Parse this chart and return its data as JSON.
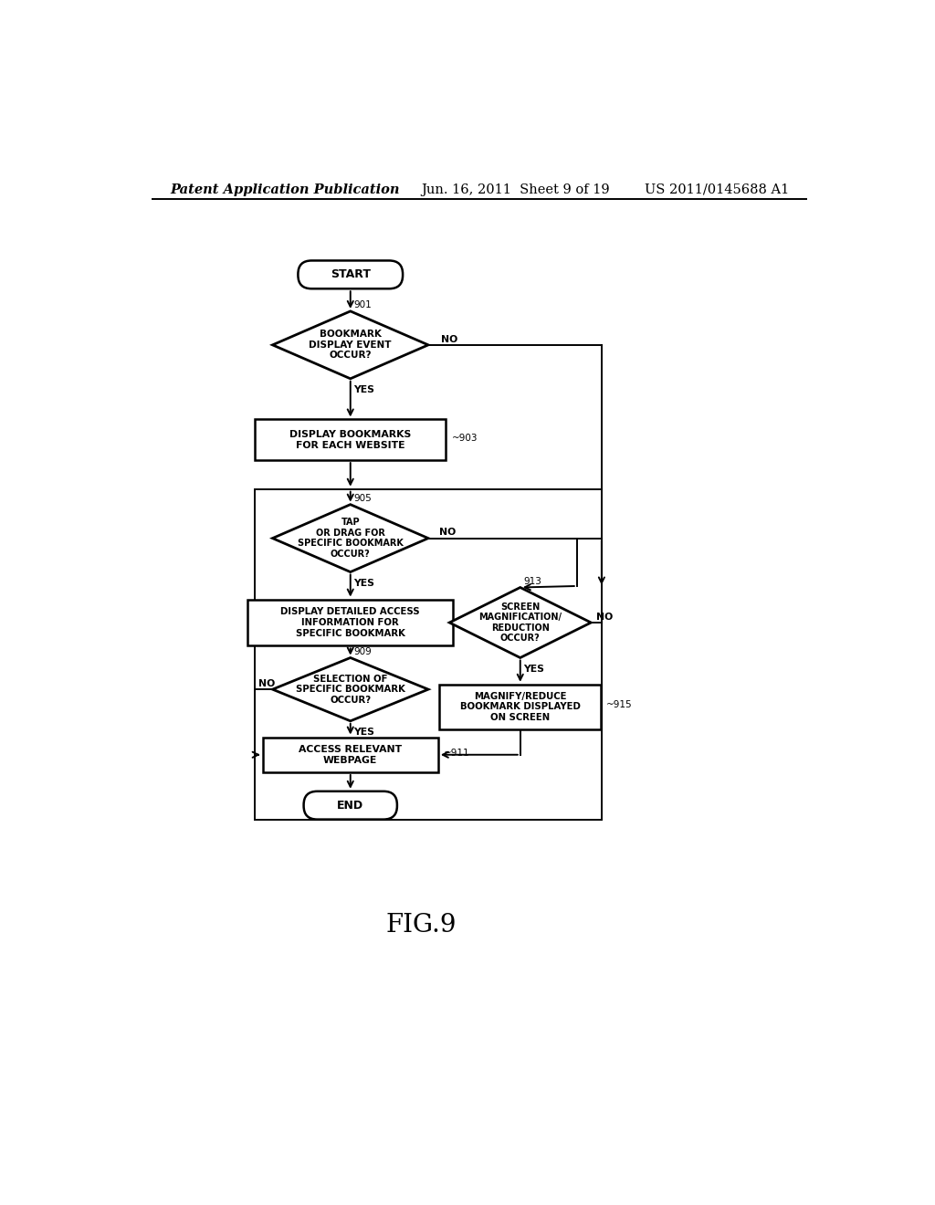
{
  "background_color": "#ffffff",
  "header_left": "Patent Application Publication",
  "header_center": "Jun. 16, 2011  Sheet 9 of 19",
  "header_right": "US 2011/0145688 A1",
  "figure_label": "FIG.9",
  "header_fontsize": 10.5,
  "fig_label_fontsize": 20
}
